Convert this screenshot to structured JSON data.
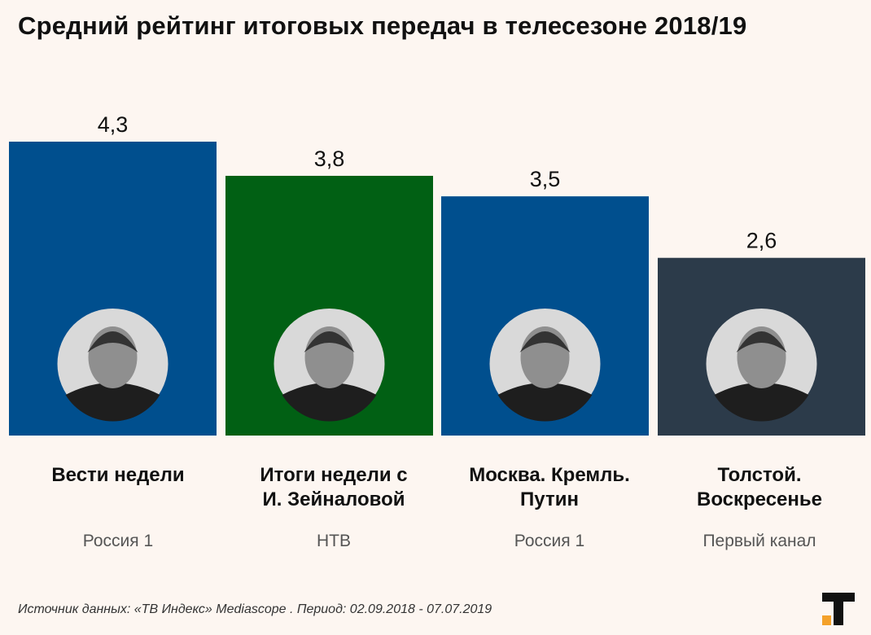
{
  "title": "Средний рейтинг итоговых передач в телесезоне 2018/19",
  "footer": "Источник данных: «ТВ Индекс» Mediascope . Период: 02.09.2018 - 07.07.2019",
  "colors": {
    "background": "#fdf6f1",
    "russia1": "#004f8e",
    "ntv": "#016014",
    "perviy": "#2c3b4a",
    "logo_orange": "#f4a12a"
  },
  "chart_data": {
    "type": "bar",
    "categories": [
      "Вести недели",
      "Итоги недели с И. Зейналовой",
      "Москва. Кремль. Путин",
      "Толстой. Воскресенье"
    ],
    "values": [
      4.3,
      3.8,
      3.5,
      2.6
    ],
    "value_labels": [
      "4,3",
      "3,8",
      "3,5",
      "2,6"
    ],
    "channels": [
      "Россия 1",
      "НТВ",
      "Россия 1",
      "Первый канал"
    ],
    "name_lines": [
      [
        "Вести недели"
      ],
      [
        "Итоги недели с",
        "И. Зейналовой"
      ],
      [
        "Москва. Кремль.",
        "Путин"
      ],
      [
        "Толстой.",
        "Воскресенье"
      ]
    ],
    "bar_colors": [
      "#004f8e",
      "#016014",
      "#004f8e",
      "#2c3b4a"
    ],
    "avatars": [
      "presenter-portrait",
      "presenter-portrait",
      "presenter-portrait",
      "presenter-portrait"
    ],
    "ylim": [
      0,
      4.3
    ],
    "grid": false,
    "legend": "none"
  }
}
